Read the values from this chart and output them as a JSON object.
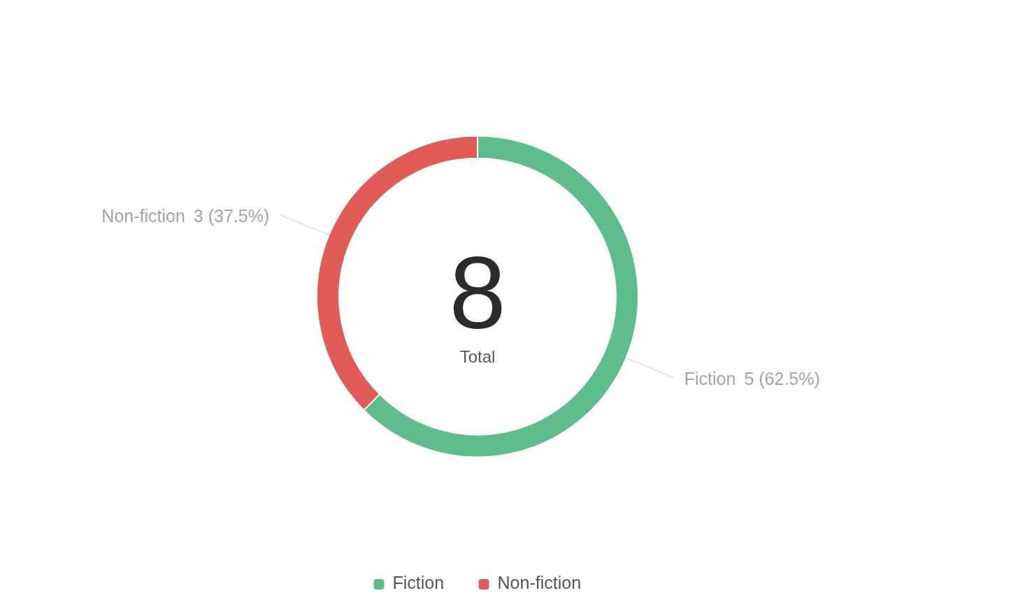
{
  "chart_data": {
    "type": "donut",
    "categories": [
      "Fiction",
      "Non-fiction"
    ],
    "values": [
      5,
      3
    ],
    "colors": [
      "#5fbd8c",
      "#e05d57"
    ],
    "value_labels": [
      "5 (62.5%)",
      "3 (37.5%)"
    ],
    "annotations": [
      "8",
      "Total"
    ],
    "legend": "bottom"
  }
}
